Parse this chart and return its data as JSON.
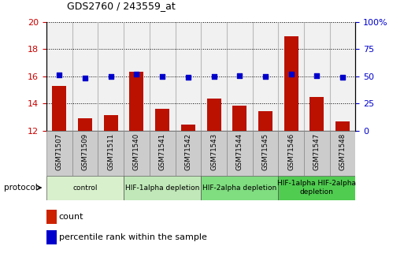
{
  "title": "GDS2760 / 243559_at",
  "samples": [
    "GSM71507",
    "GSM71509",
    "GSM71511",
    "GSM71540",
    "GSM71541",
    "GSM71542",
    "GSM71543",
    "GSM71544",
    "GSM71545",
    "GSM71546",
    "GSM71547",
    "GSM71548"
  ],
  "counts": [
    15.3,
    12.9,
    13.15,
    16.35,
    13.6,
    12.45,
    14.35,
    13.85,
    13.4,
    18.95,
    14.45,
    12.65
  ],
  "percentile_left": [
    16.1,
    15.85,
    16.0,
    16.15,
    16.0,
    15.9,
    16.0,
    16.05,
    16.0,
    16.15,
    16.05,
    15.9
  ],
  "ylim_left": [
    12,
    20
  ],
  "ylim_right": [
    0,
    100
  ],
  "yticks_left": [
    12,
    14,
    16,
    18,
    20
  ],
  "yticks_right": [
    0,
    25,
    50,
    75,
    100
  ],
  "groups": [
    {
      "label": "control",
      "start": 0,
      "end": 3,
      "color": "#d8f0cc"
    },
    {
      "label": "HIF-1alpha depletion",
      "start": 3,
      "end": 6,
      "color": "#c0e8b8"
    },
    {
      "label": "HIF-2alpha depletion",
      "start": 6,
      "end": 9,
      "color": "#80dd80"
    },
    {
      "label": "HIF-1alpha HIF-2alpha\ndepletion",
      "start": 9,
      "end": 12,
      "color": "#50cc50"
    }
  ],
  "bar_color": "#bb1100",
  "dot_color": "#0000cc",
  "bar_width": 0.55,
  "legend_count_color": "#cc2200",
  "legend_percentile_color": "#0000cc",
  "protocol_label": "protocol",
  "left_tick_color": "#cc0000",
  "right_tick_color": "#0000cc",
  "sample_box_color": "#cccccc",
  "plot_bg": "#ffffff",
  "fig_bg": "#ffffff"
}
